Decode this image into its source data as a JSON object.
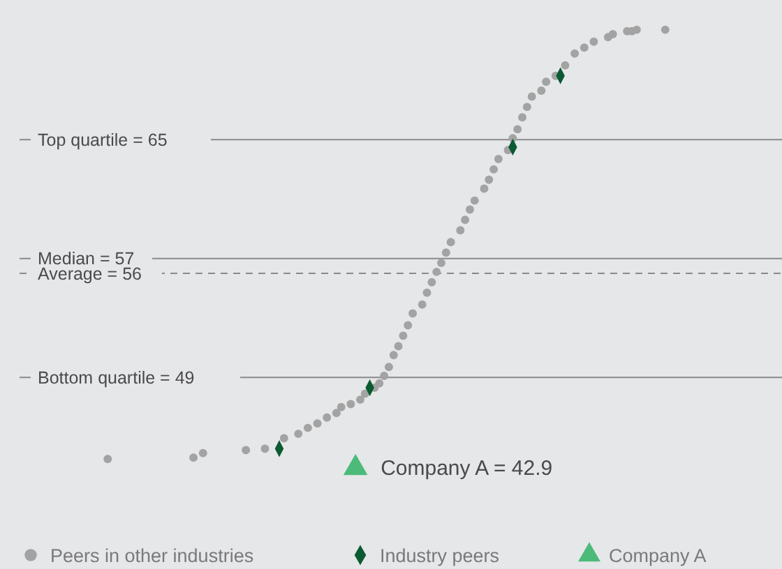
{
  "chart_data": {
    "type": "scatter",
    "categories": [
      null,
      null,
      null,
      null,
      null,
      null,
      null,
      null,
      null,
      null,
      null,
      null,
      null,
      null,
      null,
      null,
      null,
      null,
      null,
      null,
      null,
      null,
      null,
      null,
      null,
      null,
      null,
      null,
      null,
      null,
      null,
      null,
      null,
      null,
      null,
      null,
      null,
      null,
      null,
      null,
      null,
      null,
      null,
      null,
      null,
      null,
      null,
      null,
      null,
      null,
      null,
      null,
      null,
      null,
      null,
      null,
      null,
      null,
      null,
      null,
      null,
      null,
      null,
      null,
      null,
      null,
      null,
      null,
      null,
      null,
      null,
      null,
      null,
      null,
      null,
      null,
      null,
      null,
      null,
      null,
      null,
      null,
      null,
      null,
      null,
      null,
      null,
      null,
      null,
      null,
      null,
      null,
      null,
      null,
      null,
      null,
      null,
      null,
      null,
      null,
      null,
      null,
      null,
      null,
      null,
      null,
      null,
      null,
      null,
      null,
      null,
      null,
      null,
      null,
      null,
      null,
      null,
      null,
      null,
      null,
      null,
      null,
      null,
      null,
      null,
      null,
      null,
      null,
      null,
      null,
      null,
      null,
      null,
      null,
      null,
      null,
      null,
      null,
      null,
      null,
      null,
      null,
      null,
      null,
      null,
      null,
      null,
      null,
      null,
      null,
      null,
      null,
      null,
      null,
      null,
      null,
      null,
      null,
      null,
      null
    ],
    "ylim": [
      36.1,
      74.4
    ],
    "yticks": [
      {
        "value": 49,
        "label": "Bottom quartile = 49"
      },
      {
        "value": 57,
        "label": "Median = 57"
      },
      {
        "value": 65,
        "label": "Top quartile = 65"
      }
    ],
    "tick_labels": "y",
    "grid": "y",
    "legend": "bottom",
    "series": [
      {
        "name": "Peers in other industries",
        "color": "#a3a3a3",
        "marker": "circle",
        "values": [
          null,
          null,
          null,
          null,
          null,
          null,
          null,
          null,
          null,
          null,
          null,
          null,
          null,
          null,
          null,
          null,
          null,
          null,
          43.5,
          null,
          null,
          null,
          null,
          null,
          null,
          null,
          null,
          null,
          null,
          null,
          null,
          null,
          null,
          null,
          null,
          null,
          43.6,
          null,
          43.9,
          null,
          null,
          null,
          null,
          null,
          null,
          null,
          null,
          44.1,
          null,
          null,
          null,
          44.2,
          null,
          null,
          null,
          44.9,
          null,
          null,
          45.2,
          null,
          45.6,
          null,
          45.9,
          null,
          46.3,
          null,
          46.6,
          47,
          null,
          47.2,
          null,
          47.5,
          47.9,
          null,
          48.3,
          48.6,
          49.1,
          49.7,
          50.5,
          51.1,
          51.8,
          52.5,
          53.3,
          null,
          53.9,
          54.7,
          55.4,
          56.1,
          56.7,
          57.4,
          58.1,
          null,
          58.9,
          59.6,
          60.3,
          60.9,
          null,
          61.7,
          62.3,
          63,
          63.7,
          null,
          64.3,
          65.1,
          65.7,
          66.5,
          67.2,
          67.9,
          null,
          68.3,
          68.9,
          null,
          69.3,
          null,
          70,
          null,
          70.8,
          null,
          71.2,
          null,
          71.6,
          null,
          null,
          71.9,
          72.1,
          null,
          null,
          72.3,
          72.3,
          72.4,
          null,
          null,
          null,
          null,
          null,
          72.4,
          null,
          null,
          null,
          null,
          null,
          null,
          null,
          null,
          null,
          null,
          null,
          null,
          null,
          null,
          null,
          null,
          null,
          null,
          null,
          null,
          null,
          null,
          null,
          null
        ]
      },
      {
        "name": "Industry peers",
        "color": "#0b5a32",
        "marker": "diamond",
        "values": [
          null,
          null,
          null,
          null,
          null,
          null,
          null,
          null,
          null,
          null,
          null,
          null,
          null,
          null,
          null,
          null,
          null,
          null,
          null,
          null,
          null,
          null,
          null,
          null,
          null,
          null,
          null,
          null,
          null,
          null,
          null,
          null,
          null,
          null,
          null,
          null,
          null,
          null,
          null,
          null,
          null,
          null,
          null,
          null,
          null,
          null,
          null,
          null,
          null,
          null,
          null,
          null,
          null,
          null,
          44.2,
          null,
          null,
          null,
          null,
          null,
          null,
          null,
          null,
          null,
          null,
          null,
          null,
          null,
          null,
          null,
          null,
          null,
          null,
          48.3,
          null,
          null,
          null,
          null,
          null,
          null,
          null,
          null,
          null,
          null,
          null,
          null,
          null,
          null,
          null,
          null,
          null,
          null,
          null,
          null,
          null,
          null,
          null,
          null,
          null,
          null,
          null,
          null,
          null,
          64.5,
          null,
          null,
          null,
          null,
          null,
          null,
          null,
          null,
          null,
          69.3,
          null,
          null,
          null,
          null,
          null,
          null,
          null,
          null,
          null,
          null,
          null,
          null,
          null,
          null,
          null,
          null,
          null,
          null,
          null,
          null,
          null,
          null,
          null,
          null,
          null,
          null,
          null,
          null,
          null,
          null,
          null,
          null,
          null,
          null,
          null,
          null,
          null,
          null,
          null,
          null,
          null,
          null,
          null,
          null,
          null,
          null
        ]
      },
      {
        "name": "Company A",
        "color": "#4cbb7a",
        "marker": "triangle",
        "values": [
          null,
          null,
          null,
          null,
          null,
          null,
          null,
          null,
          null,
          null,
          null,
          null,
          null,
          null,
          null,
          null,
          null,
          null,
          null,
          null,
          null,
          null,
          null,
          null,
          null,
          null,
          null,
          null,
          null,
          null,
          null,
          null,
          null,
          null,
          null,
          null,
          null,
          null,
          null,
          null,
          null,
          null,
          null,
          null,
          null,
          null,
          null,
          null,
          null,
          null,
          null,
          null,
          null,
          null,
          null,
          null,
          null,
          null,
          null,
          null,
          null,
          null,
          null,
          null,
          null,
          null,
          null,
          null,
          null,
          null,
          42.9,
          null,
          null,
          null,
          null,
          null,
          null,
          null,
          null,
          null,
          null,
          null,
          null,
          null,
          null,
          null,
          null,
          null,
          null,
          null,
          null,
          null,
          null,
          null,
          null,
          null,
          null,
          null,
          null,
          null,
          null,
          null,
          null,
          null,
          null,
          null,
          null,
          null,
          null,
          null,
          null,
          null,
          null,
          null,
          null,
          null,
          null,
          null,
          null,
          null,
          null,
          null,
          null,
          null,
          null,
          null,
          null,
          null,
          null,
          null,
          null,
          null,
          null,
          null,
          null,
          null,
          null,
          null,
          null,
          null,
          null,
          null,
          null,
          null,
          null,
          null,
          null,
          null,
          null,
          null,
          null,
          null,
          null,
          null,
          null,
          null,
          null,
          null,
          null,
          null
        ],
        "value_labels": [
          null,
          null,
          null,
          null,
          null,
          null,
          null,
          null,
          null,
          null,
          null,
          null,
          null,
          null,
          null,
          null,
          null,
          null,
          null,
          null,
          null,
          null,
          null,
          null,
          null,
          null,
          null,
          null,
          null,
          null,
          null,
          null,
          null,
          null,
          null,
          null,
          null,
          null,
          null,
          null,
          null,
          null,
          null,
          null,
          null,
          null,
          null,
          null,
          null,
          null,
          null,
          null,
          null,
          null,
          null,
          null,
          null,
          null,
          null,
          null,
          null,
          null,
          null,
          null,
          null,
          null,
          null,
          null,
          null,
          null,
          "Company A = 42.9",
          null,
          null,
          null,
          null,
          null,
          null,
          null,
          null,
          null,
          null,
          null,
          null,
          null,
          null,
          null,
          null,
          null,
          null,
          null,
          null,
          null,
          null,
          null,
          null,
          null,
          null,
          null,
          null,
          null,
          null,
          null,
          null,
          null,
          null,
          null,
          null,
          null,
          null,
          null,
          null,
          null,
          null,
          null,
          null,
          null,
          null,
          null,
          null,
          null,
          null,
          null,
          null,
          null,
          null,
          null,
          null,
          null,
          null,
          null,
          null,
          null,
          null,
          null,
          null,
          null,
          null,
          null,
          null,
          null,
          null,
          null,
          null,
          null,
          null,
          null,
          null,
          null,
          null,
          null,
          null,
          null,
          null,
          null,
          null,
          null,
          null,
          null,
          null,
          null
        ]
      }
    ],
    "ref_lines": [
      {
        "axis": "y",
        "value": 56,
        "label": "Average = 56",
        "line_style": "dashed",
        "color": "#8a8a8a"
      }
    ]
  }
}
